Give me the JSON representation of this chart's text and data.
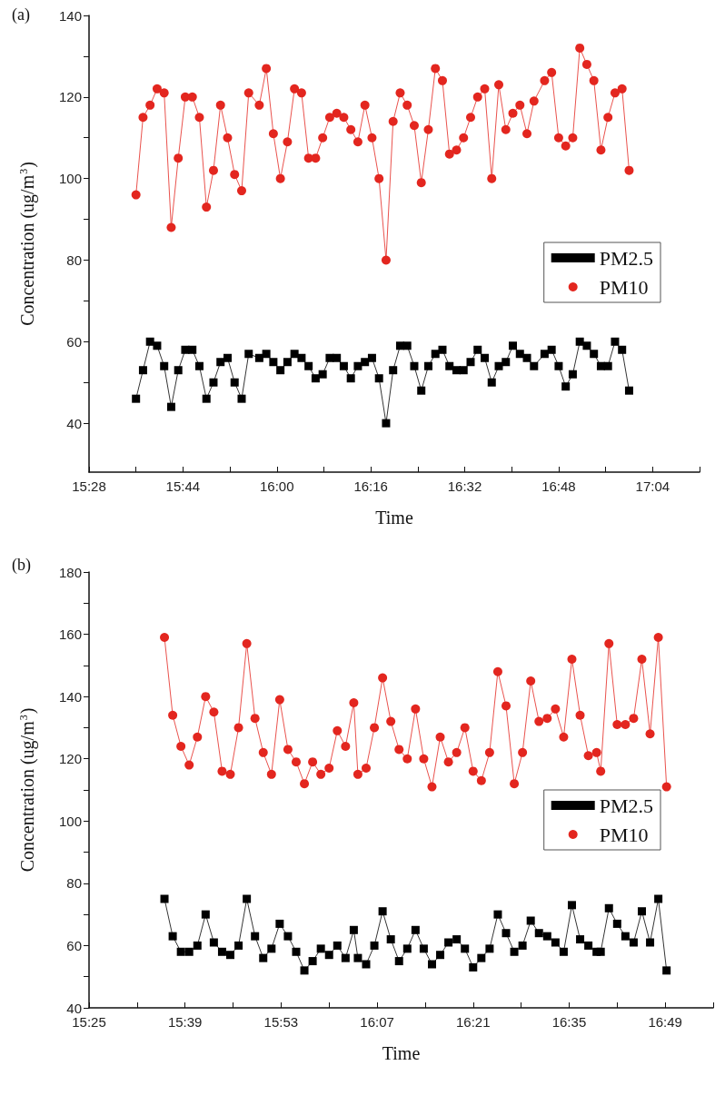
{
  "chart_data": [
    {
      "type": "line",
      "title": "(a)",
      "xlabel": "Time",
      "ylabel": "Concentration (ug/m$^{3}$)",
      "xlim": [
        15.4667,
        17.2
      ],
      "ylim": [
        28,
        140
      ],
      "xticks": [
        {
          "value": 15.4667,
          "label": "15:28"
        },
        {
          "value": 15.6,
          "label": null
        },
        {
          "value": 15.7333,
          "label": "15:44"
        },
        {
          "value": 15.8667,
          "label": null
        },
        {
          "value": 16,
          "label": "16:00"
        },
        {
          "value": 16.1333,
          "label": null
        },
        {
          "value": 16.2667,
          "label": "16:16"
        },
        {
          "value": 16.4,
          "label": null
        },
        {
          "value": 16.5333,
          "label": "16:32"
        },
        {
          "value": 16.6667,
          "label": null
        },
        {
          "value": 16.8,
          "label": "16:48"
        },
        {
          "value": 16.9333,
          "label": null
        },
        {
          "value": 17.0667,
          "label": "17:04"
        },
        {
          "value": 17.2,
          "label": null
        }
      ],
      "yticks": [
        40,
        {
          "value": 50,
          "label": null
        },
        60,
        {
          "value": 70,
          "label": null
        },
        80,
        {
          "value": 90,
          "label": null
        },
        100,
        {
          "value": 110,
          "label": null
        },
        120,
        {
          "value": 130,
          "label": null
        },
        140
      ],
      "x": [
        15.6,
        15.62,
        15.64,
        15.66,
        15.68,
        15.7,
        15.72,
        15.74,
        15.76,
        15.78,
        15.8,
        15.82,
        15.84,
        15.86,
        15.88,
        15.9,
        15.92,
        15.95,
        15.97,
        15.99,
        16.01,
        16.03,
        16.05,
        16.07,
        16.09,
        16.11,
        16.13,
        16.15,
        16.17,
        16.19,
        16.21,
        16.23,
        16.25,
        16.27,
        16.29,
        16.31,
        16.33,
        16.35,
        16.37,
        16.39,
        16.41,
        16.43,
        16.45,
        16.47,
        16.49,
        16.51,
        16.53,
        16.55,
        16.57,
        16.59,
        16.61,
        16.63,
        16.65,
        16.67,
        16.69,
        16.71,
        16.73,
        16.76,
        16.78,
        16.8,
        16.82,
        16.84,
        16.86,
        16.88,
        16.9,
        16.92,
        16.94,
        16.96,
        16.98,
        17.0
      ],
      "legend": "right",
      "grid": false,
      "series": [
        {
          "name": "PM2.5",
          "color": "#000000",
          "marker": "square",
          "values": [
            46,
            53,
            60,
            59,
            54,
            44,
            53,
            58,
            58,
            54,
            46,
            50,
            55,
            56,
            50,
            46,
            57,
            56,
            57,
            55,
            53,
            55,
            57,
            56,
            54,
            51,
            52,
            56,
            56,
            54,
            51,
            54,
            55,
            56,
            51,
            40,
            53,
            59,
            59,
            54,
            48,
            54,
            57,
            58,
            54,
            53,
            53,
            55,
            58,
            56,
            50,
            54,
            55,
            59,
            57,
            56,
            54,
            57,
            58,
            54,
            49,
            52,
            60,
            59,
            57,
            54,
            54,
            60,
            58,
            48
          ]
        },
        {
          "name": "PM10",
          "color": "#e3261f",
          "marker": "circle",
          "values": [
            96,
            115,
            118,
            122,
            121,
            88,
            105,
            120,
            120,
            115,
            93,
            102,
            118,
            110,
            101,
            97,
            121,
            118,
            127,
            111,
            100,
            109,
            122,
            121,
            105,
            105,
            110,
            115,
            116,
            115,
            112,
            109,
            118,
            110,
            100,
            80,
            114,
            121,
            118,
            113,
            99,
            112,
            127,
            124,
            106,
            107,
            110,
            115,
            120,
            122,
            100,
            123,
            112,
            116,
            118,
            111,
            119,
            124,
            126,
            110,
            108,
            110,
            132,
            128,
            124,
            107,
            115,
            121,
            122,
            102
          ]
        }
      ]
    },
    {
      "type": "line",
      "title": "(b)",
      "xlabel": "Time",
      "ylabel": "Concentration (ug/m$^{3}$)",
      "xlim": [
        15.4167,
        16.9333
      ],
      "ylim": [
        40,
        180
      ],
      "xticks": [
        {
          "value": 15.4167,
          "label": "15:25"
        },
        {
          "value": 15.5333,
          "label": null
        },
        {
          "value": 15.65,
          "label": "15:39"
        },
        {
          "value": 15.7667,
          "label": null
        },
        {
          "value": 15.8833,
          "label": "15:53"
        },
        {
          "value": 16,
          "label": null
        },
        {
          "value": 16.1167,
          "label": "16:07"
        },
        {
          "value": 16.2333,
          "label": null
        },
        {
          "value": 16.35,
          "label": "16:21"
        },
        {
          "value": 16.4667,
          "label": null
        },
        {
          "value": 16.5833,
          "label": "16:35"
        },
        {
          "value": 16.7,
          "label": null
        },
        {
          "value": 16.8167,
          "label": "16:49"
        },
        {
          "value": 16.9333,
          "label": null
        }
      ],
      "yticks": [
        40,
        {
          "value": 50,
          "label": null
        },
        60,
        {
          "value": 70,
          "label": null
        },
        80,
        {
          "value": 90,
          "label": null
        },
        100,
        {
          "value": 110,
          "label": null
        },
        120,
        {
          "value": 130,
          "label": null
        },
        140,
        {
          "value": 150,
          "label": null
        },
        160,
        {
          "value": 170,
          "label": null
        },
        180
      ],
      "x": [
        15.6,
        15.62,
        15.64,
        15.66,
        15.68,
        15.7,
        15.72,
        15.74,
        15.76,
        15.78,
        15.8,
        15.82,
        15.84,
        15.86,
        15.88,
        15.9,
        15.92,
        15.94,
        15.96,
        15.98,
        16.0,
        16.02,
        16.04,
        16.06,
        16.07,
        16.09,
        16.11,
        16.13,
        16.15,
        16.17,
        16.19,
        16.21,
        16.23,
        16.25,
        16.27,
        16.29,
        16.31,
        16.33,
        16.35,
        16.37,
        16.39,
        16.41,
        16.43,
        16.45,
        16.47,
        16.49,
        16.51,
        16.53,
        16.55,
        16.57,
        16.59,
        16.61,
        16.63,
        16.65,
        16.66,
        16.68,
        16.7,
        16.72,
        16.74,
        16.76,
        16.78,
        16.8,
        16.82
      ],
      "legend": "right",
      "grid": false,
      "series": [
        {
          "name": "PM2.5",
          "color": "#000000",
          "marker": "square",
          "values": [
            75,
            63,
            58,
            58,
            60,
            70,
            61,
            58,
            57,
            60,
            75,
            63,
            56,
            59,
            67,
            63,
            58,
            52,
            55,
            59,
            57,
            60,
            56,
            65,
            56,
            54,
            60,
            71,
            62,
            55,
            59,
            65,
            59,
            54,
            57,
            61,
            62,
            59,
            53,
            56,
            59,
            70,
            64,
            58,
            60,
            68,
            64,
            63,
            61,
            58,
            73,
            62,
            60,
            58,
            58,
            72,
            67,
            63,
            61,
            71,
            61,
            75,
            52
          ]
        },
        {
          "name": "PM10",
          "color": "#e3261f",
          "marker": "circle",
          "values": [
            159,
            134,
            124,
            118,
            127,
            140,
            135,
            116,
            115,
            130,
            157,
            133,
            122,
            115,
            139,
            123,
            119,
            112,
            119,
            115,
            117,
            129,
            124,
            138,
            115,
            117,
            130,
            146,
            132,
            123,
            120,
            136,
            120,
            111,
            127,
            119,
            122,
            130,
            116,
            113,
            122,
            148,
            137,
            112,
            122,
            145,
            132,
            133,
            136,
            127,
            152,
            134,
            121,
            122,
            116,
            157,
            131,
            131,
            133,
            152,
            128,
            159,
            111
          ]
        }
      ]
    }
  ]
}
